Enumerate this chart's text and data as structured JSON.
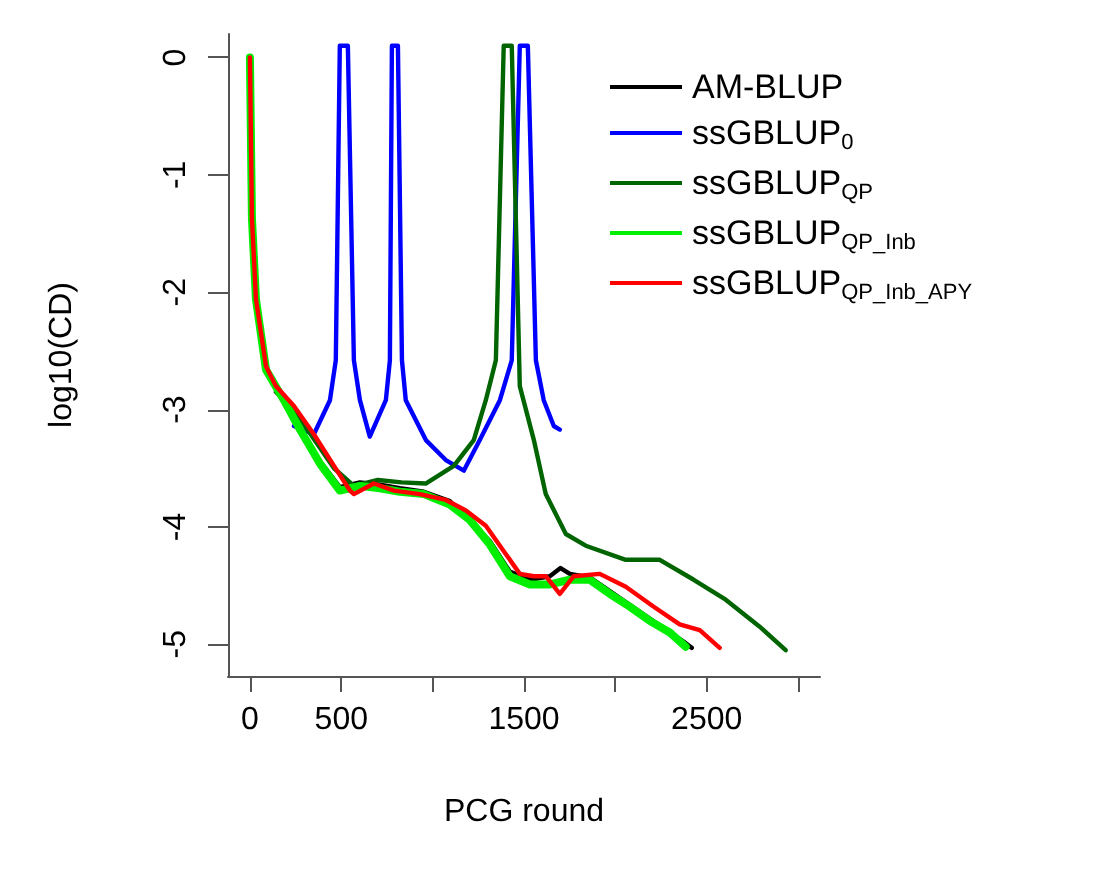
{
  "chart_data": {
    "type": "line",
    "xlabel": "PCG round",
    "ylabel": "log10(CD)",
    "xlim": [
      -120,
      3120
    ],
    "ylim": [
      -5.27,
      0.2
    ],
    "xticks": [
      0,
      500,
      {
        "value": 1000,
        "label": null
      },
      1500,
      {
        "value": 2000,
        "label": null
      },
      2500,
      {
        "value": 3000,
        "label": null
      }
    ],
    "yticks": [
      -5,
      -4,
      -3,
      -2,
      -1,
      0
    ],
    "grid": false,
    "legend": "top right",
    "marker": "none",
    "line_style": "solid",
    "series": [
      {
        "name": "AM-BLUP",
        "color": "#000000",
        "x": [
          383,
          492,
          602,
          711,
          821,
          952,
          1094,
          1203,
          1313,
          1422,
          1532,
          1641,
          1700,
          1751,
          1860,
          1969,
          2079,
          2188,
          2298,
          2385,
          2418
        ],
        "values": [
          -3.44,
          -3.66,
          -3.62,
          -3.64,
          -3.67,
          -3.7,
          -3.78,
          null,
          -4.12,
          -4.38,
          -4.45,
          -4.42,
          -4.35,
          -4.4,
          -4.43,
          null,
          null,
          -4.78,
          null,
          -4.99,
          -5.03
        ]
      },
      {
        "name": "ssGBLUP$_{0}$",
        "color": "#0000ff",
        "x": [
          241,
          350,
          438,
          470,
          492,
          536,
          569,
          602,
          656,
          744,
          766,
          777,
          810,
          832,
          853,
          963,
          1072,
          1171,
          1258,
          1368,
          1433,
          1477,
          1521,
          1565,
          1608,
          1663,
          1696
        ],
        "values": [
          -3.14,
          -3.21,
          -2.92,
          -2.58,
          0.1,
          0.1,
          -2.58,
          -2.92,
          -3.23,
          -2.92,
          -2.58,
          0.1,
          0.1,
          -2.58,
          -2.92,
          -3.26,
          -3.43,
          -3.52,
          -3.26,
          -2.92,
          -2.58,
          0.1,
          0.1,
          -2.58,
          -2.92,
          -3.14,
          -3.17
        ]
      },
      {
        "name": "ssGBLUP$_{QP}$",
        "color": "#006400",
        "x": [
          142,
          241,
          350,
          460,
          569,
          700,
          830,
          962,
          1116,
          1225,
          1291,
          1346,
          1389,
          1433,
          1477,
          1554,
          1619,
          1729,
          1838,
          2057,
          2243,
          2429,
          2604,
          2790,
          2932
        ],
        "values": [
          -2.85,
          -3.0,
          -3.25,
          -3.5,
          -3.65,
          -3.6,
          -3.62,
          -3.63,
          -3.48,
          -3.26,
          -2.92,
          -2.58,
          0.1,
          0.1,
          -2.8,
          -3.26,
          -3.72,
          -4.06,
          -4.16,
          -4.28,
          -4.28,
          -4.45,
          -4.62,
          -4.85,
          -5.05
        ]
      },
      {
        "name": "ssGBLUP$_{QP_Inb}$",
        "color": "#00ee00",
        "x": [
          0,
          11,
          33,
          88,
          186,
          274,
          383,
          492,
          602,
          711,
          821,
          952,
          1094,
          1203,
          1313,
          1422,
          1532,
          1641,
          1751,
          1860,
          1969,
          2079,
          2188,
          2298,
          2385
        ],
        "values": [
          0,
          -1.37,
          -2.06,
          -2.66,
          -2.92,
          -3.17,
          -3.46,
          -3.69,
          -3.65,
          -3.67,
          -3.7,
          -3.72,
          -3.81,
          -3.94,
          -4.15,
          -4.42,
          -4.49,
          -4.49,
          -4.45,
          -4.45,
          -4.57,
          -4.68,
          -4.8,
          -4.9,
          -5.02
        ]
      },
      {
        "name": "ssGBLUP$_{QP_Inb_APY}$",
        "color": "#ff0000",
        "x": [
          0,
          11,
          33,
          88,
          142,
          241,
          350,
          460,
          547,
          569,
          678,
          788,
          930,
          1072,
          1182,
          1291,
          1400,
          1477,
          1554,
          1619,
          1696,
          1772,
          1915,
          2057,
          2210,
          2352,
          2462,
          2571
        ],
        "values": [
          0,
          -1.37,
          -2.06,
          -2.63,
          -2.8,
          -2.97,
          -3.21,
          -3.48,
          -3.69,
          -3.72,
          -3.63,
          -3.69,
          -3.72,
          -3.77,
          -3.86,
          -3.99,
          -4.23,
          -4.4,
          -4.42,
          -4.42,
          -4.57,
          -4.42,
          -4.4,
          -4.51,
          -4.68,
          -4.83,
          -4.88,
          -5.03
        ]
      }
    ]
  }
}
